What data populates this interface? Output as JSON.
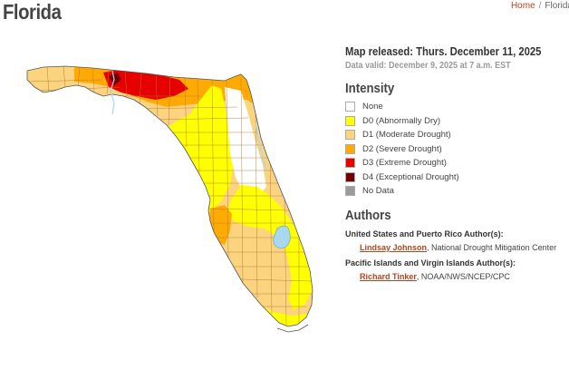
{
  "page": {
    "title": "Florida",
    "breadcrumb": [
      {
        "label": "Home",
        "link": true
      },
      {
        "label": "Florida",
        "link": false
      }
    ]
  },
  "map": {
    "map_released": "Map released: Thurs. December 11, 2025",
    "data_valid": "Data valid: December 9, 2025 at 7 a.m. EST"
  },
  "intensity": {
    "heading": "Intensity",
    "items": [
      {
        "label": "None",
        "color": "#ffffff"
      },
      {
        "label": "D0 (Abnormally Dry)",
        "color": "#ffff00"
      },
      {
        "label": "D1 (Moderate Drought)",
        "color": "#fcd37f"
      },
      {
        "label": "D2 (Severe Drought)",
        "color": "#ffaa00"
      },
      {
        "label": "D3 (Extreme Drought)",
        "color": "#e60000"
      },
      {
        "label": "D4 (Exceptional Drought)",
        "color": "#730000"
      },
      {
        "label": "No Data",
        "color": "#9b9b9b"
      }
    ]
  },
  "authors": {
    "heading": "Authors",
    "groups": [
      {
        "heading": "United States and Puerto Rico Author(s):",
        "name": "Lindsay Johnson",
        "affiliation": ", National Drought Mitigation Center"
      },
      {
        "heading": "Pacific Islands and Virgin Islands Author(s):",
        "name": "Richard Tinker",
        "affiliation": ", NOAA/NWS/NCEP/CPC"
      }
    ]
  },
  "colors": {
    "accent": "#b5431f",
    "water": "#a8d8f0",
    "county_lines": "#b07a3a"
  }
}
